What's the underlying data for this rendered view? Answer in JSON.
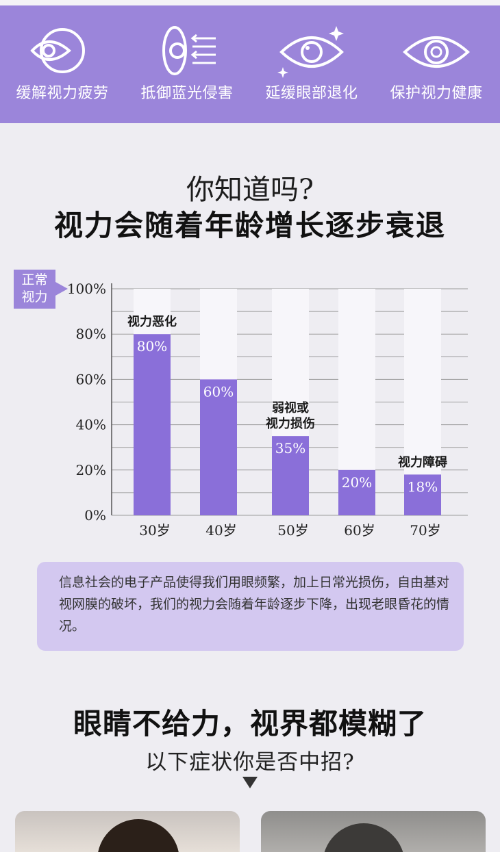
{
  "features": [
    {
      "icon": "eye-relief-icon",
      "label": "缓解视力疲劳"
    },
    {
      "icon": "blue-light-shield-icon",
      "label": "抵御蓝光侵害"
    },
    {
      "icon": "sparkle-eye-icon",
      "label": "延缓眼部退化"
    },
    {
      "icon": "eye-protect-icon",
      "label": "保护视力健康"
    }
  ],
  "question": {
    "line1": "你知道吗?",
    "line2": "视力会随着年龄增长逐步衰退"
  },
  "colors": {
    "accent": "#9b85da",
    "bar": "#8a6fd9",
    "bar_bg": "#f7f6fa",
    "box": "#d3c8f0"
  },
  "chart_data": {
    "type": "bar",
    "ylabel": "正常\n视力",
    "ylabel_lines": [
      "正常",
      "视力"
    ],
    "categories": [
      "30岁",
      "40岁",
      "50岁",
      "60岁",
      "70岁"
    ],
    "values": [
      80,
      60,
      35,
      20,
      18
    ],
    "value_labels": [
      "80%",
      "60%",
      "35%",
      "20%",
      "18%"
    ],
    "annotations": [
      {
        "category": "30岁",
        "lines": [
          "视力恶化"
        ]
      },
      {
        "category": "50岁",
        "lines": [
          "弱视或",
          "视力损伤"
        ]
      },
      {
        "category": "70岁",
        "lines": [
          "视力障碍"
        ]
      }
    ],
    "ylim": [
      0,
      100
    ],
    "yticks": [
      0,
      20,
      40,
      60,
      80,
      100
    ],
    "ytick_labels": [
      "0%",
      "20%",
      "40%",
      "60%",
      "80%",
      "100%"
    ],
    "grid": true,
    "legend": "none"
  },
  "description": "信息社会的电子产品使得我们用眼频繁，加上日常光损伤，自由基对视网膜的破坏，我们的视力会随着年龄逐步下降，出现老眼昏花的情况。",
  "section2": {
    "title": "眼睛不给力，视界都模糊了",
    "subtitle": "以下症状你是否中招?"
  }
}
